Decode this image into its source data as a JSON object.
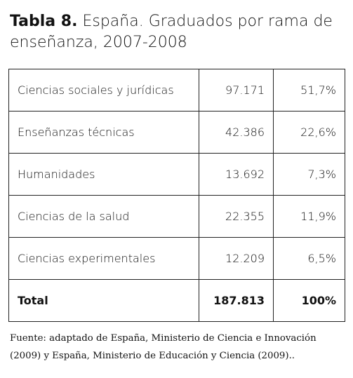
{
  "header": {
    "label": "Tabla 8.",
    "title": "España. Graduados por rama de enseñanza, 2007-2008"
  },
  "table": {
    "rows": [
      [
        "Ciencias sociales y jurídicas",
        "97.171",
        "51,7%"
      ],
      [
        "Enseñanzas técnicas",
        "42.386",
        "22,6%"
      ],
      [
        "Humanidades",
        "13.692",
        "7,3%"
      ],
      [
        "Ciencias de la salud",
        "22.355",
        "11,9%"
      ],
      [
        "Ciencias experimentales",
        "12.209",
        "6,5%"
      ]
    ],
    "total": [
      "Total",
      "187.813",
      "100%"
    ]
  },
  "source": "Fuente: adaptado de España, Ministerio de Ciencia e Innovación (2009) y España, Ministerio de Educación y Ciencia (2009).."
}
